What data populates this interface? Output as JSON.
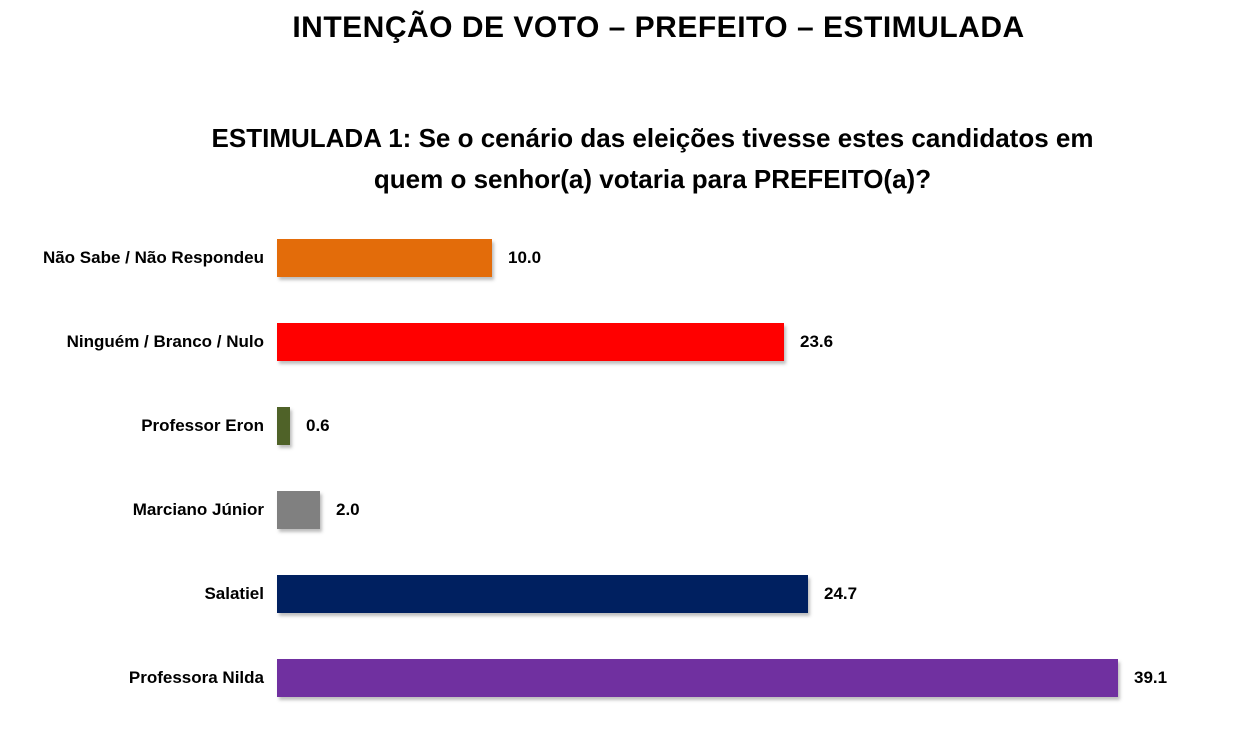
{
  "header": {
    "title": "INTENÇÃO DE VOTO – PREFEITO – ESTIMULADA",
    "subtitle_line1": "ESTIMULADA 1: Se o cenário das eleições tivesse estes candidatos em",
    "subtitle_line2": "quem o senhor(a) votaria para PREFEITO(a)?"
  },
  "chart_data": {
    "type": "bar",
    "orientation": "horizontal",
    "title": "INTENÇÃO DE VOTO – PREFEITO – ESTIMULADA",
    "subtitle": "ESTIMULADA 1: Se o cenário das eleições tivesse estes candidatos em quem o senhor(a) votaria para PREFEITO(a)?",
    "categories": [
      "Não Sabe / Não Respondeu",
      "Ninguém / Branco / Nulo",
      "Professor Eron",
      "Marciano Júnior",
      "Salatiel",
      "Professora Nilda"
    ],
    "values": [
      10.0,
      23.6,
      0.6,
      2.0,
      24.7,
      39.1
    ],
    "value_labels": [
      "10.0",
      "23.6",
      "0.6",
      "2.0",
      "24.7",
      "39.1"
    ],
    "colors": [
      "#E36C0A",
      "#FF0000",
      "#4F6228",
      "#808080",
      "#002060",
      "#7030A0"
    ],
    "xlim": [
      0,
      40
    ],
    "grid": false,
    "legend": false,
    "data_labels": "outside-end"
  }
}
